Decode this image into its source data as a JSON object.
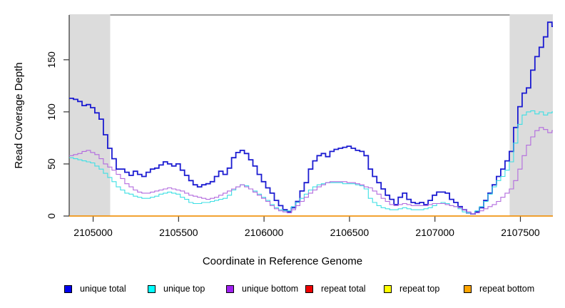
{
  "figure": {
    "xlabel": "Coordinate in Reference Genome",
    "ylabel": "Read Coverage Depth"
  },
  "legend": {
    "items": [
      {
        "label": "unique total",
        "color": "#0000ee"
      },
      {
        "label": "unique top",
        "color": "#00ffff"
      },
      {
        "label": "unique bottom",
        "color": "#a020f0"
      },
      {
        "label": "repeat total",
        "color": "#ee0000"
      },
      {
        "label": "repeat top",
        "color": "#ffff00"
      },
      {
        "label": "repeat bottom",
        "color": "#ffa500"
      }
    ]
  },
  "chart_data": {
    "type": "line",
    "subtype": "step",
    "title": "",
    "xlabel": "Coordinate in Reference Genome",
    "ylabel": "Read Coverage Depth",
    "xlim": [
      2104860,
      2107690
    ],
    "ylim": [
      0,
      193
    ],
    "grid": false,
    "legend_position": "bottom",
    "x_ticks": [
      2105000,
      2105500,
      2106000,
      2106500,
      2107000,
      2107500
    ],
    "y_ticks": [
      0,
      50,
      100,
      150
    ],
    "shade_color": "#dcdcdc",
    "shaded_regions": [
      {
        "x0": 2104860,
        "x1": 2105100
      },
      {
        "x0": 2107437,
        "x1": 2107690
      }
    ],
    "x_start": 2104860,
    "x_step": 25,
    "series": [
      {
        "name": "unique total",
        "color": "#1b1bd1",
        "width": 1.8,
        "values": [
          113,
          112,
          110,
          106,
          107,
          104,
          99,
          93,
          78,
          65,
          55,
          45,
          45,
          42,
          39,
          43,
          40,
          38,
          42,
          45,
          46,
          49,
          52,
          50,
          48,
          50,
          44,
          39,
          34,
          30,
          28,
          30,
          31,
          33,
          38,
          43,
          40,
          46,
          56,
          61,
          63,
          60,
          54,
          48,
          40,
          33,
          27,
          22,
          15,
          10,
          6,
          4,
          8,
          14,
          24,
          32,
          45,
          53,
          58,
          60,
          57,
          62,
          64,
          65,
          66,
          67,
          65,
          63,
          62,
          58,
          45,
          38,
          32,
          26,
          20,
          16,
          11,
          18,
          22,
          16,
          13,
          12,
          13,
          11,
          15,
          20,
          23,
          23,
          22,
          16,
          13,
          9,
          6,
          3,
          2,
          4,
          8,
          15,
          22,
          30,
          38,
          45,
          53,
          62,
          85,
          105,
          118,
          123,
          140,
          153,
          162,
          172,
          186,
          182
        ]
      },
      {
        "name": "unique top",
        "color": "#3cdfe4",
        "width": 1.1,
        "values": [
          56,
          55,
          54,
          53,
          52,
          51,
          48,
          45,
          41,
          37,
          33,
          28,
          25,
          22,
          21,
          19,
          18,
          17,
          17,
          18,
          19,
          21,
          22,
          23,
          22,
          21,
          18,
          16,
          13,
          12,
          12,
          13,
          13,
          14,
          15,
          16,
          17,
          20,
          25,
          28,
          30,
          29,
          26,
          24,
          21,
          18,
          15,
          11,
          8,
          6,
          5,
          5,
          9,
          13,
          17,
          21,
          25,
          28,
          30,
          31,
          32,
          32,
          32,
          32,
          31,
          31,
          31,
          30,
          29,
          26,
          17,
          13,
          10,
          8,
          7,
          6,
          6,
          7,
          8,
          7,
          6,
          6,
          6,
          7,
          8,
          10,
          12,
          13,
          12,
          10,
          9,
          7,
          4,
          3,
          2,
          5,
          9,
          14,
          21,
          28,
          34,
          38,
          44,
          52,
          70,
          88,
          97,
          100,
          101,
          98,
          100,
          97,
          99,
          100
        ]
      },
      {
        "name": "unique bottom",
        "color": "#b26ade",
        "width": 1.1,
        "values": [
          58,
          59,
          60,
          62,
          63,
          61,
          59,
          55,
          50,
          47,
          44,
          40,
          36,
          31,
          28,
          25,
          23,
          22,
          22,
          23,
          24,
          25,
          26,
          27,
          26,
          25,
          24,
          22,
          20,
          19,
          18,
          17,
          16,
          17,
          18,
          20,
          22,
          24,
          26,
          28,
          30,
          28,
          26,
          23,
          20,
          17,
          14,
          10,
          7,
          5,
          4,
          3,
          6,
          10,
          14,
          18,
          22,
          25,
          28,
          30,
          32,
          33,
          33,
          33,
          33,
          32,
          32,
          31,
          30,
          28,
          27,
          24,
          21,
          17,
          14,
          11,
          10,
          11,
          12,
          11,
          10,
          10,
          10,
          10,
          11,
          12,
          12,
          12,
          11,
          10,
          9,
          8,
          6,
          4,
          2,
          3,
          5,
          7,
          9,
          11,
          14,
          18,
          22,
          26,
          34,
          45,
          58,
          68,
          76,
          82,
          85,
          83,
          80,
          82
        ]
      },
      {
        "name": "repeat total",
        "color": "#dd0000",
        "width": 1.1,
        "constant": 0
      },
      {
        "name": "repeat top",
        "color": "#ffff00",
        "width": 1.1,
        "constant": 0
      },
      {
        "name": "repeat bottom",
        "color": "#ff9500",
        "width": 1.6,
        "constant": 0
      }
    ]
  }
}
